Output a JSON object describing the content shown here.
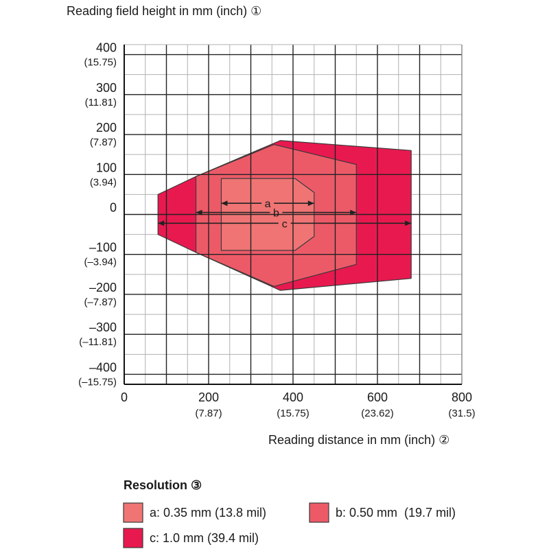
{
  "chart_data": {
    "type": "area",
    "ylabel": "Reading field height in mm (inch) ①",
    "xlabel": "Reading distance in mm (inch) ②",
    "xlim": [
      0,
      800
    ],
    "ylim": [
      -425,
      425
    ],
    "grid": true,
    "x_ticks": [
      {
        "value": 0,
        "label": "0",
        "sub": ""
      },
      {
        "value": 200,
        "label": "200",
        "sub": "(7.87)"
      },
      {
        "value": 400,
        "label": "400",
        "sub": "(15.75)"
      },
      {
        "value": 600,
        "label": "600",
        "sub": "(23.62)"
      },
      {
        "value": 800,
        "label": "800",
        "sub": "(31.5)"
      }
    ],
    "y_ticks": [
      {
        "value": 400,
        "label": "400",
        "sub": "(15.75)"
      },
      {
        "value": 300,
        "label": "300",
        "sub": "(11.81)"
      },
      {
        "value": 200,
        "label": "200",
        "sub": "(7.87)"
      },
      {
        "value": 100,
        "label": "100",
        "sub": "(3.94)"
      },
      {
        "value": 0,
        "label": "0",
        "sub": ""
      },
      {
        "value": -100,
        "label": "–100",
        "sub": "(–3.94)"
      },
      {
        "value": -200,
        "label": "–200",
        "sub": "(–7.87)"
      },
      {
        "value": -300,
        "label": "–300",
        "sub": "(–11.81)"
      },
      {
        "value": -400,
        "label": "–400",
        "sub": "(–15.75)"
      }
    ],
    "series": [
      {
        "name": "c: 1.0 mm (39.4 mil)",
        "key": "c",
        "color": "#e8194f",
        "polygon": [
          [
            80,
            50
          ],
          [
            170,
            95
          ],
          [
            370,
            185
          ],
          [
            680,
            160
          ],
          [
            680,
            -160
          ],
          [
            370,
            -190
          ],
          [
            170,
            -95
          ],
          [
            80,
            -50
          ]
        ],
        "range": [
          80,
          680
        ]
      },
      {
        "name": "b: 0.50 mm  (19.7 mil)",
        "key": "b",
        "color": "#ec5a68",
        "polygon": [
          [
            170,
            95
          ],
          [
            355,
            175
          ],
          [
            550,
            125
          ],
          [
            550,
            -125
          ],
          [
            355,
            -180
          ],
          [
            170,
            -95
          ]
        ],
        "range": [
          170,
          550
        ]
      },
      {
        "name": "a: 0.35 mm (13.8 mil)",
        "key": "a",
        "color": "#f07474",
        "polygon": [
          [
            230,
            90
          ],
          [
            405,
            90
          ],
          [
            450,
            55
          ],
          [
            450,
            -55
          ],
          [
            405,
            -90
          ],
          [
            230,
            -90
          ]
        ],
        "range": [
          230,
          450
        ]
      }
    ],
    "legend": {
      "title": "Resolution ③",
      "placement": "bottom"
    }
  }
}
